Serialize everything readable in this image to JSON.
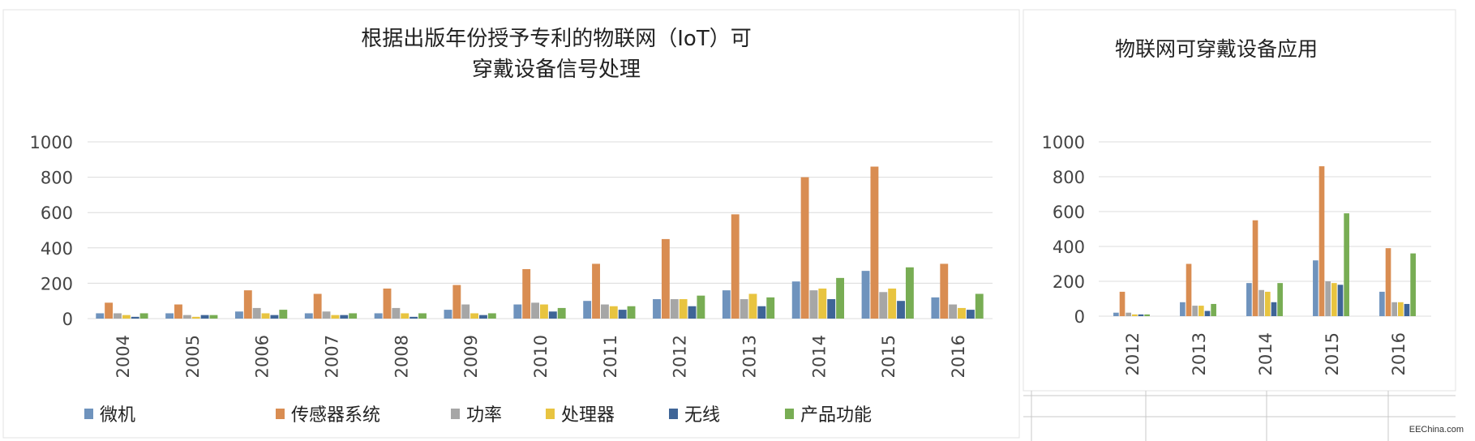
{
  "watermark": "EEChina.com",
  "legend": [
    {
      "label": "微机",
      "color": "#6f93bd"
    },
    {
      "label": "传感器系统",
      "color": "#d98d52"
    },
    {
      "label": "功率",
      "color": "#a6a6a6"
    },
    {
      "label": "处理器",
      "color": "#e8c440"
    },
    {
      "label": "无线",
      "color": "#3f6597"
    },
    {
      "label": "产品功能",
      "color": "#78ad54"
    }
  ],
  "chart_data": [
    {
      "type": "bar",
      "title_lines": [
        "根据出版年份授予专利的物联网（IoT）可",
        "穿戴设备信号处理"
      ],
      "categories": [
        "2004",
        "2005",
        "2006",
        "2007",
        "2008",
        "2009",
        "2010",
        "2011",
        "2012",
        "2013",
        "2014",
        "2015",
        "2016"
      ],
      "ylim": [
        0,
        1000
      ],
      "yticks": [
        0,
        200,
        400,
        600,
        800,
        1000
      ],
      "grid": true,
      "legend_position": "bottom",
      "series": [
        {
          "name": "微机",
          "values": [
            30,
            30,
            40,
            30,
            30,
            50,
            80,
            100,
            110,
            160,
            210,
            270,
            120
          ]
        },
        {
          "name": "传感器系统",
          "values": [
            90,
            80,
            160,
            140,
            170,
            190,
            280,
            310,
            450,
            590,
            800,
            860,
            310
          ]
        },
        {
          "name": "功率",
          "values": [
            30,
            20,
            60,
            40,
            60,
            80,
            90,
            80,
            110,
            110,
            160,
            150,
            80
          ]
        },
        {
          "name": "处理器",
          "values": [
            20,
            10,
            30,
            20,
            30,
            30,
            80,
            70,
            110,
            140,
            170,
            170,
            60
          ]
        },
        {
          "name": "无线",
          "values": [
            10,
            20,
            20,
            20,
            10,
            20,
            40,
            50,
            70,
            70,
            110,
            100,
            50
          ]
        },
        {
          "name": "产品功能",
          "values": [
            30,
            20,
            50,
            30,
            30,
            30,
            60,
            70,
            130,
            120,
            230,
            290,
            140
          ]
        }
      ]
    },
    {
      "type": "bar",
      "title_lines": [
        "物联网可穿戴设备应用"
      ],
      "categories": [
        "2012",
        "2013",
        "2014",
        "2015",
        "2016"
      ],
      "ylim": [
        0,
        1000
      ],
      "yticks": [
        0,
        200,
        400,
        600,
        800,
        1000
      ],
      "grid": true,
      "series": [
        {
          "name": "微机",
          "values": [
            20,
            80,
            190,
            320,
            140
          ]
        },
        {
          "name": "传感器系统",
          "values": [
            140,
            300,
            550,
            860,
            390
          ]
        },
        {
          "name": "功率",
          "values": [
            20,
            60,
            150,
            200,
            80
          ]
        },
        {
          "name": "处理器",
          "values": [
            10,
            60,
            140,
            190,
            80
          ]
        },
        {
          "name": "无线",
          "values": [
            10,
            30,
            80,
            180,
            70
          ]
        },
        {
          "name": "产品功能",
          "values": [
            10,
            70,
            190,
            590,
            360
          ]
        }
      ]
    }
  ]
}
